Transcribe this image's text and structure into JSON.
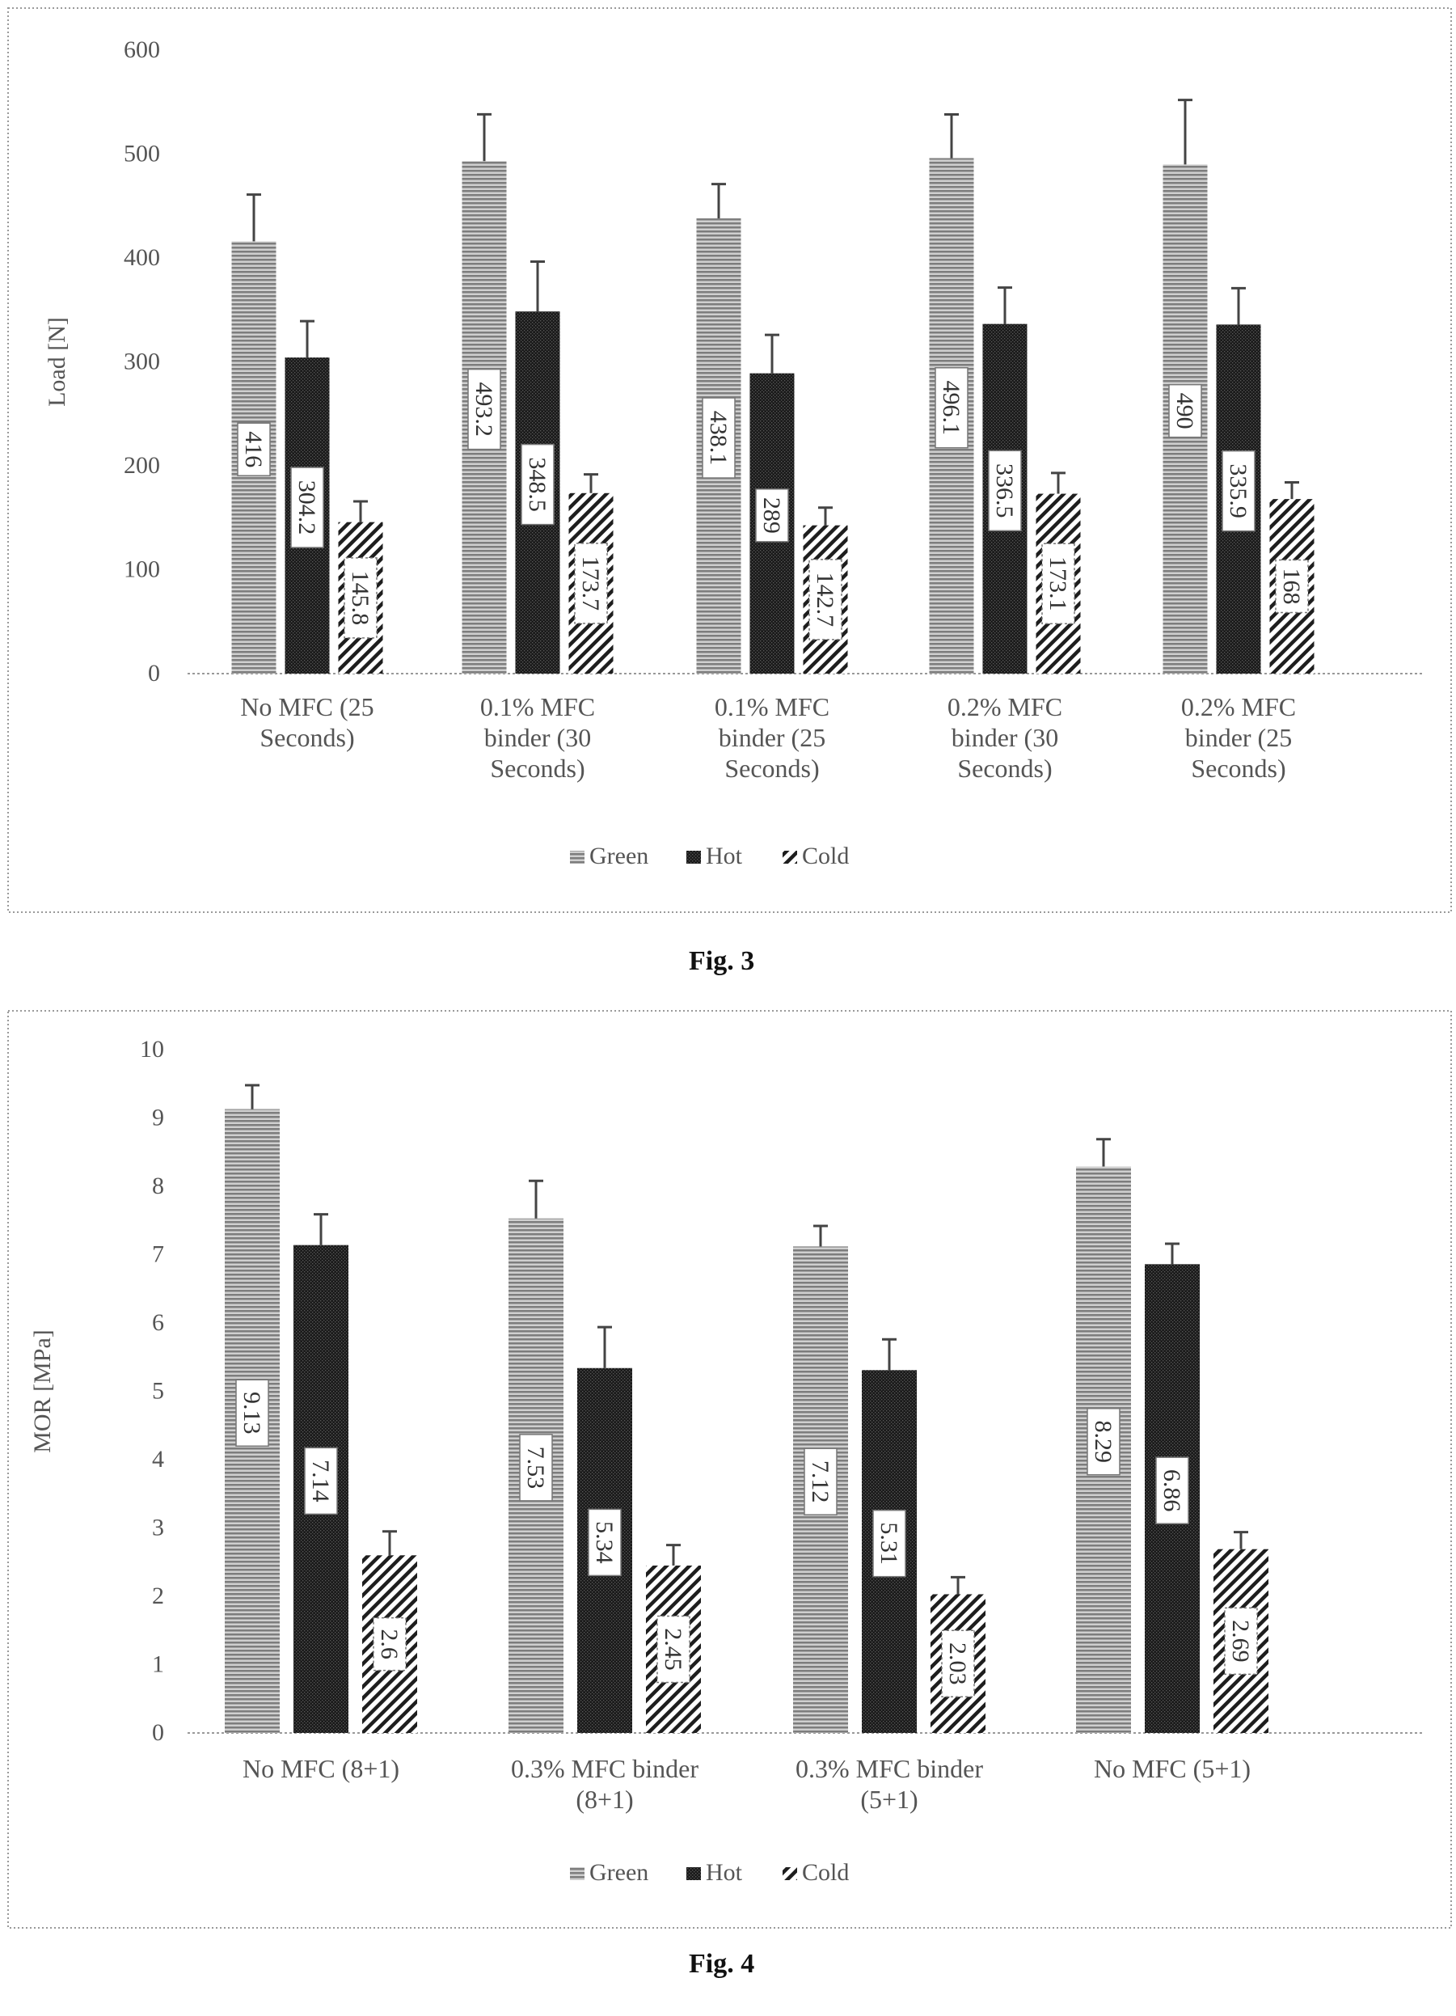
{
  "figures": [
    {
      "caption": "Fig. 3"
    },
    {
      "caption": "Fig. 4"
    }
  ],
  "colors": {
    "green": "#9a9a9a",
    "hot": "#1e1e1e",
    "cold": "#2a2a2a",
    "axis": "#999999",
    "frame": "#9a9a9a"
  },
  "chart_data": [
    {
      "type": "bar",
      "title": "",
      "ylabel": "Load [N]",
      "xlabel": "",
      "ylim": [
        0,
        600
      ],
      "yticks": [
        0,
        100,
        200,
        300,
        400,
        500,
        600
      ],
      "categories": [
        [
          "No MFC (25",
          "Seconds)"
        ],
        [
          "0.1% MFC",
          "binder (30",
          "Seconds)"
        ],
        [
          "0.1% MFC",
          "binder (25",
          "Seconds)"
        ],
        [
          "0.2% MFC",
          "binder (30",
          "Seconds)"
        ],
        [
          "0.2% MFC",
          "binder (25",
          "Seconds)"
        ]
      ],
      "series": [
        {
          "name": "Green",
          "values": [
            416,
            493.2,
            438.1,
            496.1,
            490
          ],
          "labels": [
            "416",
            "493.2",
            "438.1",
            "496.1",
            "490"
          ],
          "errors": [
            45,
            45,
            33,
            42,
            62
          ]
        },
        {
          "name": "Hot",
          "values": [
            304.2,
            348.5,
            289,
            336.5,
            335.9
          ],
          "labels": [
            "304.2",
            "348.5",
            "289",
            "336.5",
            "335.9"
          ],
          "errors": [
            35,
            48,
            37,
            35,
            35
          ]
        },
        {
          "name": "Cold",
          "values": [
            145.8,
            173.7,
            142.7,
            173.1,
            168
          ],
          "labels": [
            "145.8",
            "173.7",
            "142.7",
            "173.1",
            "168"
          ],
          "errors": [
            20,
            18,
            17,
            20,
            16
          ]
        }
      ],
      "legend": "bottom",
      "grid": false
    },
    {
      "type": "bar",
      "title": "",
      "ylabel": "MOR [MPa]",
      "xlabel": "",
      "ylim": [
        0,
        10
      ],
      "yticks": [
        0,
        1,
        2,
        3,
        4,
        5,
        6,
        7,
        8,
        9,
        10
      ],
      "categories": [
        [
          "No MFC (8+1)"
        ],
        [
          "0.3% MFC binder",
          "(8+1)"
        ],
        [
          "0.3% MFC binder",
          "(5+1)"
        ],
        [
          "No MFC (5+1)"
        ]
      ],
      "series": [
        {
          "name": "Green",
          "values": [
            9.13,
            7.53,
            7.12,
            8.29
          ],
          "labels": [
            "9.13",
            "7.53",
            "7.12",
            "8.29"
          ],
          "errors": [
            0.35,
            0.55,
            0.3,
            0.4
          ]
        },
        {
          "name": "Hot",
          "values": [
            7.14,
            5.34,
            5.31,
            6.86
          ],
          "labels": [
            "7.14",
            "5.34",
            "5.31",
            "6.86"
          ],
          "errors": [
            0.45,
            0.6,
            0.45,
            0.3
          ]
        },
        {
          "name": "Cold",
          "values": [
            2.6,
            2.45,
            2.03,
            2.69
          ],
          "labels": [
            "2.6",
            "2.45",
            "2.03",
            "2.69"
          ],
          "errors": [
            0.35,
            0.3,
            0.25,
            0.25
          ]
        }
      ],
      "legend": "bottom",
      "grid": false
    }
  ]
}
